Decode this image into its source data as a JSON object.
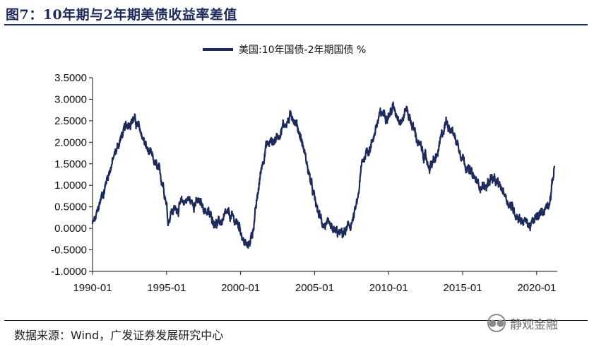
{
  "header": {
    "title": "图7：10年期与2年期美债收益率差值"
  },
  "footer": {
    "source": "数据来源：Wind，广发证券发展研究中心",
    "watermark_text": "静观金融",
    "watermark_icon": "wechat-icon"
  },
  "colors": {
    "series": "#1f2a5c",
    "axis": "#111111"
  },
  "chart_data": {
    "type": "line",
    "title": "10年期与2年期美债收益率差值",
    "xlabel": "",
    "ylabel": "",
    "ylim": [
      -1.0,
      3.5
    ],
    "xlim": [
      1990.0,
      2021.2
    ],
    "y_ticks": [
      "3.5000",
      "3.0000",
      "2.5000",
      "2.0000",
      "1.5000",
      "1.0000",
      "0.5000",
      "0.0000",
      "-0.5000",
      "-1.0000"
    ],
    "y_tick_values": [
      3.5,
      3.0,
      2.5,
      2.0,
      1.5,
      1.0,
      0.5,
      0.0,
      -0.5,
      -1.0
    ],
    "x_ticks": [
      "1990-01",
      "1995-01",
      "2000-01",
      "2005-01",
      "2010-01",
      "2015-01",
      "2020-01"
    ],
    "x_tick_values": [
      1990,
      1995,
      2000,
      2005,
      2010,
      2015,
      2020
    ],
    "legend": [
      "美国:10年国债-2年期国债 %"
    ],
    "legend_position": "top-center",
    "series": [
      {
        "name": "美国:10年国债-2年期国债 %",
        "x": [
          1990.0,
          1990.2,
          1990.4,
          1990.6,
          1990.8,
          1991.0,
          1991.3,
          1991.6,
          1991.9,
          1992.2,
          1992.5,
          1992.8,
          1993.0,
          1993.3,
          1993.6,
          1993.9,
          1994.2,
          1994.5,
          1994.8,
          1995.0,
          1995.1,
          1995.3,
          1995.6,
          1996.0,
          1996.4,
          1996.7,
          1997.0,
          1997.3,
          1997.6,
          1997.9,
          1998.2,
          1998.5,
          1998.8,
          1999.1,
          1999.4,
          1999.7,
          2000.0,
          2000.2,
          2000.5,
          2000.8,
          2001.1,
          2001.4,
          2001.7,
          2002.0,
          2002.3,
          2002.6,
          2002.9,
          2003.2,
          2003.5,
          2003.8,
          2004.0,
          2004.3,
          2004.6,
          2004.9,
          2005.2,
          2005.5,
          2005.8,
          2006.1,
          2006.4,
          2006.7,
          2007.0,
          2007.3,
          2007.6,
          2007.9,
          2008.2,
          2008.5,
          2008.8,
          2009.1,
          2009.4,
          2009.7,
          2010.0,
          2010.3,
          2010.6,
          2010.9,
          2011.2,
          2011.5,
          2011.8,
          2012.1,
          2012.4,
          2012.7,
          2013.0,
          2013.3,
          2013.6,
          2013.9,
          2014.2,
          2014.5,
          2014.8,
          2015.1,
          2015.4,
          2015.7,
          2016.0,
          2016.3,
          2016.6,
          2016.9,
          2017.2,
          2017.5,
          2017.8,
          2018.1,
          2018.4,
          2018.7,
          2019.0,
          2019.3,
          2019.6,
          2019.9,
          2020.2,
          2020.5,
          2020.8,
          2021.0,
          2021.2
        ],
        "values": [
          0.1,
          0.2,
          0.45,
          0.75,
          0.9,
          1.2,
          1.5,
          1.8,
          2.1,
          2.3,
          2.5,
          2.55,
          2.4,
          2.2,
          1.9,
          1.7,
          1.5,
          1.3,
          1.0,
          0.6,
          0.15,
          0.4,
          0.45,
          0.55,
          0.7,
          0.6,
          0.62,
          0.55,
          0.45,
          0.3,
          0.2,
          0.1,
          0.2,
          0.3,
          0.25,
          0.15,
          0.0,
          -0.3,
          -0.45,
          -0.1,
          0.6,
          1.4,
          1.9,
          2.0,
          2.05,
          2.2,
          2.4,
          2.5,
          2.65,
          2.4,
          2.2,
          1.8,
          1.3,
          0.8,
          0.4,
          0.15,
          0.05,
          -0.05,
          -0.1,
          -0.15,
          -0.1,
          0.0,
          0.2,
          0.6,
          1.5,
          1.8,
          1.9,
          2.3,
          2.6,
          2.7,
          2.65,
          2.8,
          2.65,
          2.5,
          2.8,
          2.5,
          2.2,
          1.9,
          1.7,
          1.45,
          1.5,
          1.7,
          2.15,
          2.5,
          2.35,
          2.1,
          1.85,
          1.6,
          1.35,
          1.2,
          1.05,
          1.0,
          0.95,
          1.2,
          1.05,
          0.95,
          0.85,
          0.6,
          0.45,
          0.3,
          0.2,
          0.15,
          0.05,
          0.2,
          0.3,
          0.45,
          0.6,
          0.9,
          1.45
        ]
      }
    ]
  }
}
